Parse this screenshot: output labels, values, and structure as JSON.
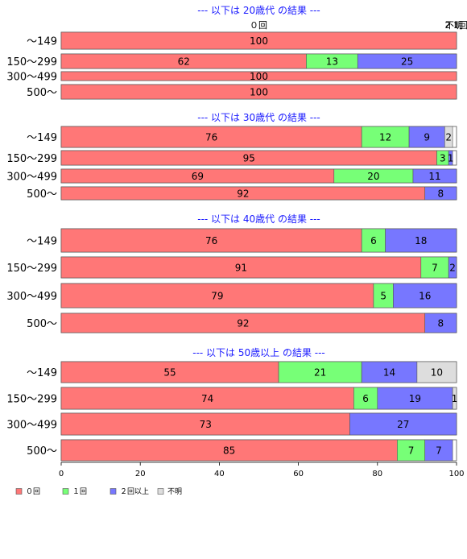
{
  "chart_data": {
    "type": "bar",
    "orientation": "horizontal",
    "stacked": true,
    "xlim": [
      0,
      100
    ],
    "x_ticks": [
      0,
      20,
      40,
      60,
      80,
      100
    ],
    "categories": [
      "～149",
      "150～299",
      "300～499",
      "500～"
    ],
    "series_names": [
      "０回",
      "１回",
      "２回以上",
      "不明"
    ],
    "colors": [
      "#ff7777",
      "#77ff77",
      "#7777ff",
      "#dddddd"
    ],
    "legend": {
      "placement": "bottom-left",
      "items": [
        {
          "name": "０回",
          "color": "#ff7777"
        },
        {
          "name": "１回",
          "color": "#77ff77"
        },
        {
          "name": "２回以上",
          "color": "#7777ff"
        },
        {
          "name": "不明",
          "color": "#dddddd"
        }
      ]
    },
    "top_header_labels": [
      "０回",
      "2",
      "不明",
      "1回"
    ],
    "panels": [
      {
        "title": "--- 以下は 20歳代 の結果 ---",
        "rows": [
          {
            "label": "～149",
            "values": [
              100,
              0,
              0,
              0
            ],
            "labels": [
              "100",
              "",
              "",
              ""
            ]
          },
          {
            "label": "150～299",
            "values": [
              62,
              13,
              25,
              0
            ],
            "labels": [
              "62",
              "13",
              "25",
              ""
            ]
          },
          {
            "label": "300～499",
            "values": [
              100,
              0,
              0,
              0
            ],
            "labels": [
              "100",
              "",
              "",
              ""
            ]
          },
          {
            "label": "500～",
            "values": [
              100,
              0,
              0,
              0
            ],
            "labels": [
              "100",
              "",
              "",
              ""
            ]
          }
        ]
      },
      {
        "title": "--- 以下は 30歳代 の結果 ---",
        "rows": [
          {
            "label": "～149",
            "values": [
              76,
              12,
              9,
              2
            ],
            "labels": [
              "76",
              "12",
              "9",
              "2"
            ]
          },
          {
            "label": "150～299",
            "values": [
              95,
              3,
              1,
              0
            ],
            "labels": [
              "95",
              "3",
              "1",
              ""
            ]
          },
          {
            "label": "300～499",
            "values": [
              69,
              20,
              11,
              0
            ],
            "labels": [
              "69",
              "20",
              "11",
              ""
            ]
          },
          {
            "label": "500～",
            "values": [
              92,
              0,
              8,
              0
            ],
            "labels": [
              "92",
              "",
              "8",
              ""
            ]
          }
        ]
      },
      {
        "title": "--- 以下は 40歳代 の結果 ---",
        "rows": [
          {
            "label": "～149",
            "values": [
              76,
              6,
              18,
              0
            ],
            "labels": [
              "76",
              "6",
              "18",
              ""
            ]
          },
          {
            "label": "150～299",
            "values": [
              91,
              7,
              2,
              0
            ],
            "labels": [
              "91",
              "7",
              "2",
              ""
            ]
          },
          {
            "label": "300～499",
            "values": [
              79,
              5,
              16,
              0
            ],
            "labels": [
              "79",
              "5",
              "16",
              ""
            ]
          },
          {
            "label": "500～",
            "values": [
              92,
              0,
              8,
              0
            ],
            "labels": [
              "92",
              "",
              "8",
              ""
            ]
          }
        ]
      },
      {
        "title": "--- 以下は 50歳以上 の結果 ---",
        "rows": [
          {
            "label": "～149",
            "values": [
              55,
              21,
              14,
              10
            ],
            "labels": [
              "55",
              "21",
              "14",
              "10"
            ]
          },
          {
            "label": "150～299",
            "values": [
              74,
              6,
              19,
              1
            ],
            "labels": [
              "74",
              "6",
              "19",
              "1"
            ]
          },
          {
            "label": "300～499",
            "values": [
              73,
              0,
              27,
              0
            ],
            "labels": [
              "73",
              "",
              "27",
              ""
            ]
          },
          {
            "label": "500～",
            "values": [
              85,
              7,
              7,
              0
            ],
            "labels": [
              "85",
              "7",
              "7",
              ""
            ]
          }
        ]
      }
    ]
  }
}
